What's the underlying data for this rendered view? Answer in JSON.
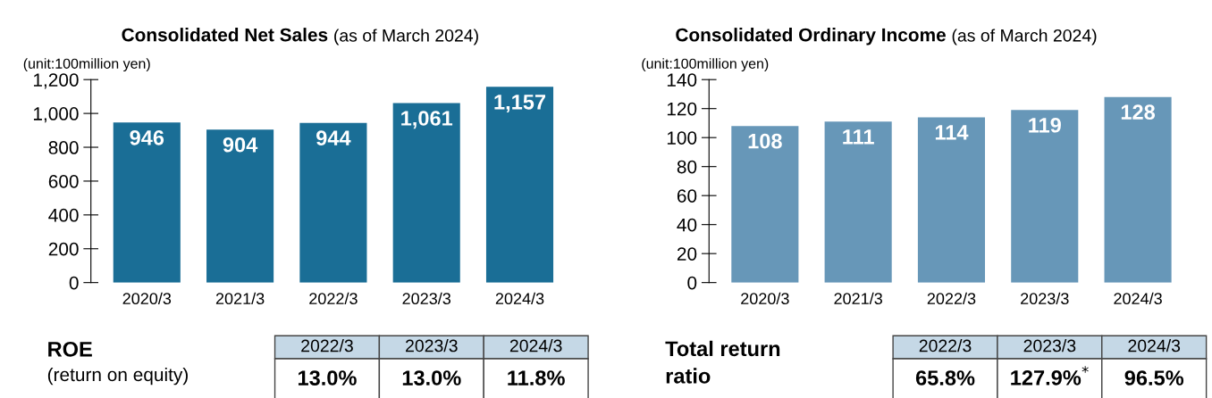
{
  "chart_data": [
    {
      "type": "bar",
      "title": "Consolidated Net Sales",
      "subtitle": "(as of March 2024)",
      "ylabel": "(unit:100million yen)",
      "categories": [
        "2020/3",
        "2021/3",
        "2022/3",
        "2023/3",
        "2024/3"
      ],
      "values": [
        946,
        904,
        944,
        1061,
        1157
      ],
      "color": "#1a6e96",
      "ylim": [
        0,
        1200
      ],
      "yticks": [
        0,
        200,
        400,
        600,
        800,
        {
          "value": 1000,
          "label": "1,000"
        },
        {
          "value": 1200,
          "label": "1,200"
        }
      ],
      "value_labels": [
        "946",
        "904",
        "944",
        "1,061",
        "1,157"
      ],
      "grid": false,
      "legend": false
    },
    {
      "type": "bar",
      "title": "Consolidated Ordinary Income",
      "subtitle": "(as of March 2024)",
      "ylabel": "(unit:100million yen)",
      "categories": [
        "2020/3",
        "2021/3",
        "2022/3",
        "2023/3",
        "2024/3"
      ],
      "values": [
        108,
        111,
        114,
        119,
        128
      ],
      "color": "#6797b8",
      "ylim": [
        0,
        140
      ],
      "yticks": [
        0,
        20,
        40,
        60,
        80,
        100,
        120,
        140
      ],
      "data_labels": true,
      "grid": false,
      "legend": false
    },
    {
      "type": "other",
      "title": "ROE",
      "subtitle": "(return on equity)",
      "categories": [
        "2022/3",
        "2023/3",
        "2024/3"
      ],
      "value_labels": [
        "13.0%",
        "13.0%",
        "11.8%"
      ],
      "color": "#c5d8e6"
    },
    {
      "type": "other",
      "title": "Total return\nratio",
      "categories": [
        "2022/3",
        "2023/3",
        "2024/3"
      ],
      "value_labels": [
        "65.8%",
        "127.9%$^{*}$",
        "96.5%"
      ],
      "color": "#c5d8e6"
    }
  ]
}
